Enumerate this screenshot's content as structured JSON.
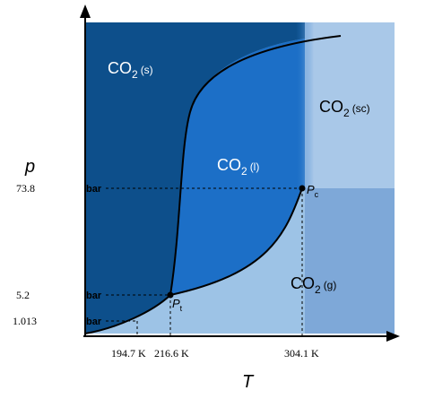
{
  "colors": {
    "solid": "#0d4f8b",
    "liquid": "#1c6fc7",
    "gas": "#9dc3e6",
    "supercritical_upper": "#a9c8e8",
    "supercritical_lower": "#7ea8d8",
    "curve": "#000000",
    "guide": "#000000"
  },
  "axes": {
    "y_title": "p",
    "x_title": "T"
  },
  "regions": {
    "solid": {
      "main": "CO",
      "sub_num": "2",
      "phase": "(s)"
    },
    "liquid": {
      "main": "CO",
      "sub_num": "2",
      "phase": "(l)"
    },
    "gas": {
      "main": "CO",
      "sub_num": "2",
      "phase": "(g)"
    },
    "supercritical": {
      "main": "CO",
      "sub_num": "2",
      "phase": "(sc)"
    }
  },
  "points": {
    "triple": {
      "main": "P",
      "sub": "t"
    },
    "critical": {
      "main": "P",
      "sub": "c"
    }
  },
  "pressure_ticks": [
    {
      "value": "73.8",
      "unit": "bar"
    },
    {
      "value": "5.2",
      "unit": "bar"
    },
    {
      "value": "1.013",
      "unit": "bar"
    }
  ],
  "temperature_ticks": [
    {
      "value": "194.7 K"
    },
    {
      "value": "216.6 K"
    },
    {
      "value": "304.1 K"
    }
  ]
}
